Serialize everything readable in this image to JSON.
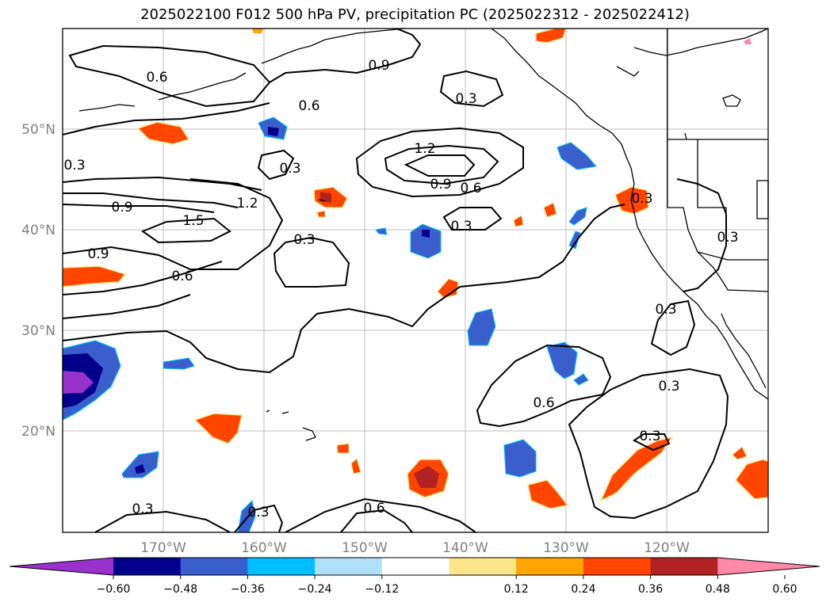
{
  "title": "2025022100 F012 500 hPa PV, precipitation PC (2025022312 - 2025022412)",
  "map": {
    "lon_range": [
      180,
      110
    ],
    "lat_range": [
      10,
      60
    ],
    "lon_ticks": [
      "170°W",
      "160°W",
      "150°W",
      "140°W",
      "130°W",
      "120°W"
    ],
    "lat_ticks": [
      "50°N",
      "40°N",
      "30°N",
      "20°N"
    ],
    "contour_labels": [
      "0.6",
      "0.9",
      "0.3",
      "0.6",
      "0.3",
      "1.2",
      "0.9",
      "0.6",
      "0.3",
      "0.3",
      "0.9",
      "1.2",
      "1.5",
      "0.9",
      "0.6",
      "0.3",
      "0.3",
      "0.3",
      "0.3",
      "0.6",
      "0.3",
      "0.3",
      "0.6",
      "0.3",
      "0.3"
    ]
  },
  "colorbar": {
    "ticks": [
      "−0.60",
      "−0.48",
      "−0.36",
      "−0.24",
      "−0.12",
      "0.12",
      "0.24",
      "0.36",
      "0.48",
      "0.60"
    ],
    "colors": [
      "#9932cc",
      "#00008b",
      "#3a5fcd",
      "#00bfff",
      "#b0e0f8",
      "#ffffff",
      "#fce68a",
      "#ffa500",
      "#ff4500",
      "#b22222",
      "#ff89aa"
    ]
  }
}
